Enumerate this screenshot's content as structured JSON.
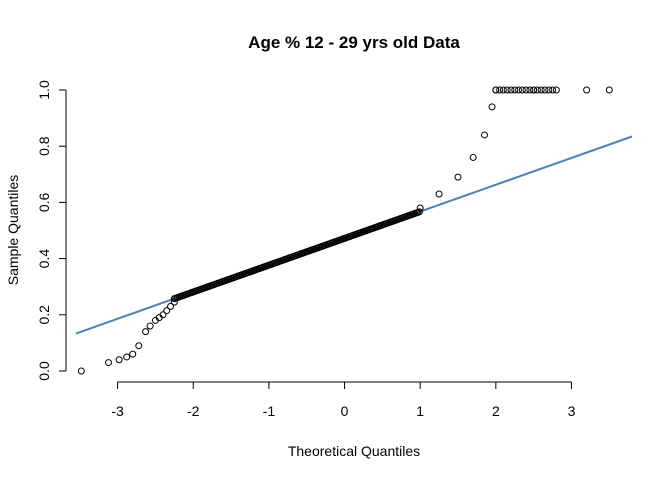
{
  "chart_data": {
    "type": "scatter",
    "title": "Age % 12 - 29 yrs old Data",
    "xlabel": "Theoretical Quantiles",
    "ylabel": "Sample Quantiles",
    "xlim": [
      -3.55,
      3.8
    ],
    "ylim": [
      0.0,
      1.0
    ],
    "x_ticks": [
      "-3",
      "-2",
      "-1",
      "0",
      "1",
      "2",
      "3"
    ],
    "y_ticks": [
      "0.0",
      "0.2",
      "0.4",
      "0.6",
      "0.8",
      "1.0"
    ],
    "ref_line": {
      "intercept": 0.472,
      "slope": 0.0954,
      "color": "#4f81b4"
    },
    "sample_points": [
      [
        -3.48,
        0.0
      ],
      [
        -3.12,
        0.03
      ],
      [
        -2.98,
        0.04
      ],
      [
        -2.88,
        0.05
      ],
      [
        -2.8,
        0.06
      ],
      [
        -2.72,
        0.09
      ],
      [
        -2.63,
        0.14
      ],
      [
        -2.57,
        0.16
      ],
      [
        -2.5,
        0.18
      ],
      [
        -2.45,
        0.19
      ],
      [
        -2.4,
        0.2
      ],
      [
        -2.35,
        0.215
      ],
      [
        -2.3,
        0.23
      ],
      [
        -2.25,
        0.245
      ],
      [
        1.0,
        0.58
      ],
      [
        1.25,
        0.63
      ],
      [
        1.5,
        0.69
      ],
      [
        1.7,
        0.76
      ],
      [
        1.85,
        0.84
      ],
      [
        1.95,
        0.94
      ],
      [
        2.0,
        1.0
      ],
      [
        2.5,
        1.0
      ],
      [
        3.2,
        1.0
      ],
      [
        3.5,
        1.0
      ]
    ],
    "grid": false,
    "legend": "none"
  }
}
